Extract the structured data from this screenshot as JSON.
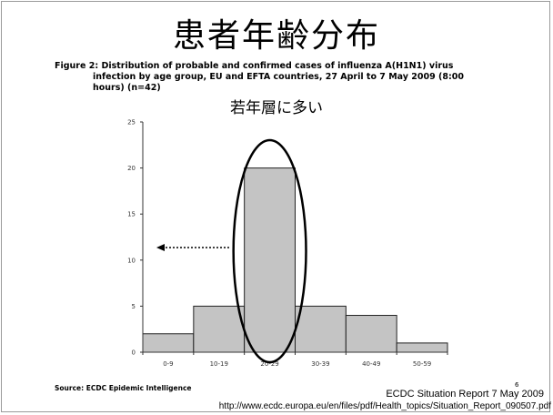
{
  "slide": {
    "title": "患者年齢分布",
    "figure_caption_line1": "Figure 2: Distribution of probable and confirmed cases of influenza A(H1N1) virus",
    "figure_caption_line2": "infection by age group, EU and EFTA countries, 27 April to 7 May 2009 (8:00",
    "figure_caption_line3": "hours) (n=42)",
    "annotation": "若年層に多い",
    "source": "Source: ECDC Epidemic Intelligence",
    "page_number": "6",
    "report_reference": "ECDC Situation Report 7 May 2009",
    "report_url": "http://www.ecdc.europa.eu/en/files/pdf/Health_topics/Situation_Report_090507.pdf"
  },
  "chart_data": {
    "type": "bar",
    "categories": [
      "0-9",
      "10-19",
      "20-29",
      "30-39",
      "40-49",
      "50-59"
    ],
    "values": [
      2,
      5,
      20,
      5,
      4,
      1
    ],
    "title": "",
    "xlabel": "",
    "ylabel": "",
    "ylim": [
      0,
      25
    ],
    "yticks": [
      0,
      5,
      10,
      15,
      20,
      25
    ],
    "grid": false,
    "bar_color": "#c4c4c4",
    "highlight": {
      "category": "20-29",
      "shape": "ellipse"
    },
    "arrow": {
      "direction": "left",
      "style": "dotted"
    }
  }
}
